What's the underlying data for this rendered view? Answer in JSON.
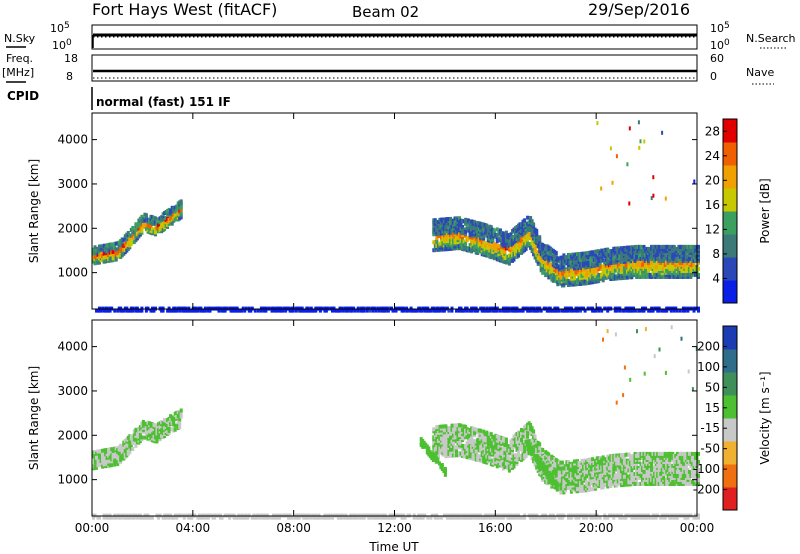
{
  "header": {
    "title": "Fort Hays West (fitACF)",
    "beam": "Beam 02",
    "date": "29/Sep/2016"
  },
  "strips": {
    "nsky_label": "N.Sky",
    "nsearch_label": "N.Search",
    "nsky_ticks": [
      "10^5",
      "10^0"
    ],
    "nsearch_ticks": [
      "10^5",
      "10^0"
    ],
    "freq_label": "Freq.",
    "freq_unit": "[MHz]",
    "freq_ticks": [
      "18",
      "8"
    ],
    "nave_label": "Nave",
    "nave_ticks": [
      "60",
      "0"
    ],
    "cpid_label": "CPID",
    "cpid_text": "normal (fast) 151 IF"
  },
  "chart_data": [
    {
      "type": "heatmap",
      "name": "power",
      "ylabel": "Slant Range [km]",
      "y_ticks": [
        "1000",
        "2000",
        "3000",
        "4000"
      ],
      "ylim": [
        180,
        4600
      ],
      "x_ticks": [
        "00:00",
        "04:00",
        "08:00",
        "12:00",
        "16:00",
        "20:00",
        "00:00"
      ],
      "xlim_hours": [
        0,
        24
      ],
      "colorbar_label": "Power [dB]",
      "colorbar_ticks": [
        "4",
        "8",
        "12",
        "16",
        "20",
        "24",
        "28"
      ],
      "colorbar_range": [
        0,
        30
      ],
      "colorbar_colors": [
        "#0a1fe6",
        "#2a48b8",
        "#3c7a7a",
        "#3aa060",
        "#c8c800",
        "#f0a000",
        "#f06000",
        "#e00000"
      ],
      "features": [
        {
          "t": [
            0.0,
            1.0,
            1.5,
            2.0,
            2.5,
            3.0,
            3.5
          ],
          "r": [
            1450,
            1550,
            1850,
            2200,
            2100,
            2300,
            2500
          ],
          "thickness": 400,
          "power": 16
        },
        {
          "t": [
            13.5,
            14.5,
            15.5,
            16.5,
            17.3,
            17.8,
            18.5,
            19.5,
            20.5,
            21.5,
            22.5,
            23.5,
            24.0
          ],
          "r": [
            1900,
            1950,
            1800,
            1600,
            2000,
            1400,
            1100,
            1150,
            1250,
            1300,
            1300,
            1300,
            1300
          ],
          "thickness": 700,
          "power": 14
        },
        {
          "t": [
            0.0,
            24.0
          ],
          "r": [
            230,
            230
          ],
          "thickness": 80,
          "power": 6
        }
      ]
    },
    {
      "type": "heatmap",
      "name": "velocity",
      "ylabel": "Slant Range [km]",
      "y_ticks": [
        "1000",
        "2000",
        "3000",
        "4000"
      ],
      "ylim": [
        180,
        4600
      ],
      "x_ticks": [
        "00:00",
        "04:00",
        "08:00",
        "12:00",
        "16:00",
        "20:00",
        "00:00"
      ],
      "xlabel": "Time UT",
      "xlim_hours": [
        0,
        24
      ],
      "colorbar_label": "Velocity [m s⁻¹]",
      "colorbar_ticks": [
        "200",
        "100",
        "50",
        "15",
        "-15",
        "-50",
        "-100",
        "-200"
      ],
      "colorbar_range": [
        -250,
        250
      ],
      "colorbar_colors": [
        "#1c3cb4",
        "#2f6e8a",
        "#3f8f5a",
        "#4cc030",
        "#c8c8c8",
        "#f0b030",
        "#f07010",
        "#e02020"
      ],
      "features": [
        {
          "t": [
            0.0,
            1.0,
            1.5,
            2.0,
            2.5,
            3.0,
            3.5
          ],
          "r": [
            1500,
            1600,
            1900,
            2200,
            2100,
            2300,
            2450
          ],
          "thickness": 400,
          "velocity": 0
        },
        {
          "t": [
            13.5,
            14.5,
            15.5,
            16.5,
            17.3,
            17.8,
            18.5,
            19.5,
            20.5,
            21.5,
            22.5,
            23.5,
            24.0
          ],
          "r": [
            1900,
            1950,
            1800,
            1600,
            2000,
            1400,
            1100,
            1150,
            1250,
            1300,
            1300,
            1300,
            1300
          ],
          "thickness": 700,
          "velocity": 0
        },
        {
          "t": [
            13.0,
            14.0
          ],
          "r": [
            1900,
            1200
          ],
          "thickness": 150,
          "velocity": 30
        },
        {
          "t": [
            17.2,
            18.4
          ],
          "r": [
            1850,
            900
          ],
          "thickness": 160,
          "velocity": 30
        },
        {
          "t": [
            0.0,
            24.0
          ],
          "r": [
            230,
            230
          ],
          "thickness": 80,
          "velocity": -40
        }
      ]
    }
  ]
}
